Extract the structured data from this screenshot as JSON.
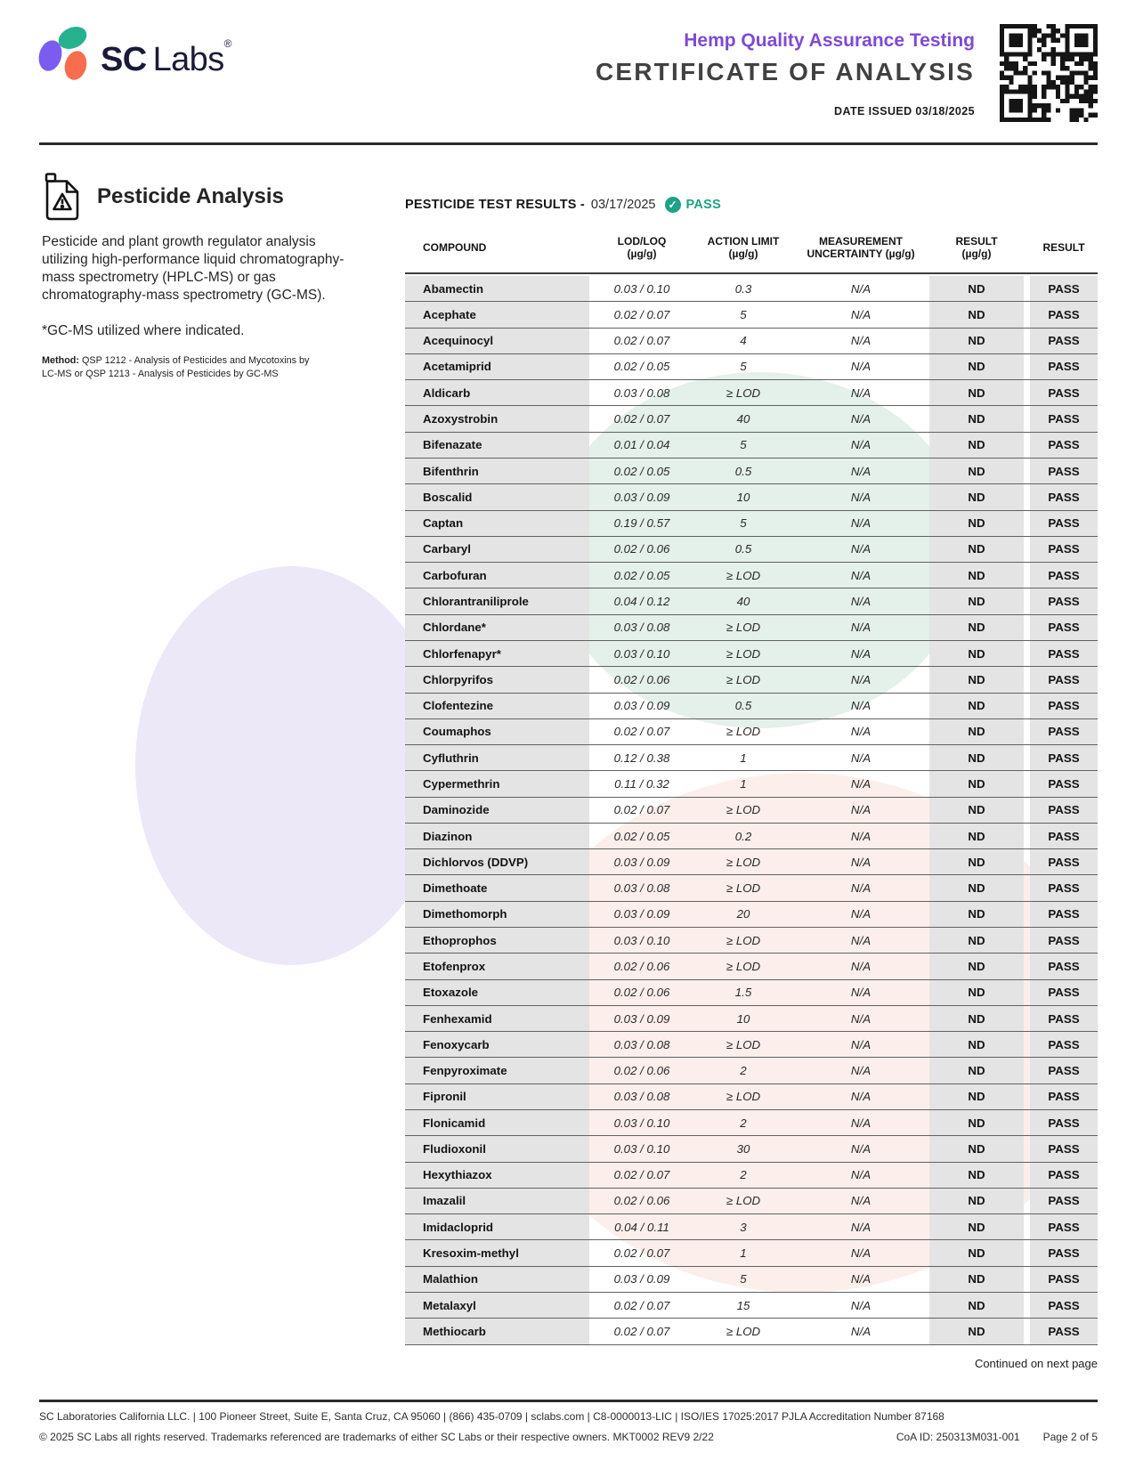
{
  "colors": {
    "purple": "#7e4ad2",
    "teal": "#1ea185",
    "navy": "#1b1b38",
    "logo-teal": "#27b28e",
    "logo-purple": "#7a5cf0",
    "logo-orange": "#f76d4e",
    "cell-gray": "#e4e4e4",
    "tint-teal": "#e4f0ea",
    "tint-lavender": "#ece8f8",
    "tint-pink": "#fcefeb"
  },
  "header": {
    "brand_sc": "SC",
    "brand_labs": "Labs",
    "brand_reg": "®",
    "program": "Hemp Quality Assurance Testing",
    "doc_title": "CERTIFICATE OF ANALYSIS",
    "date_issued": "DATE ISSUED 03/18/2025"
  },
  "section": {
    "title": "Pesticide Analysis",
    "description": "Pesticide and plant growth regulator analysis utilizing high-performance liquid chromatography-mass spectrometry (HPLC-MS) or gas chromatography-mass spectrometry (GC-MS).",
    "note": "*GC-MS utilized where indicated.",
    "method_label": "Method:",
    "method": " QSP 1212 - Analysis of Pesticides and Mycotoxins by LC-MS or QSP 1213 - Analysis of Pesticides by GC-MS"
  },
  "results": {
    "title": "PESTICIDE TEST RESULTS -",
    "date": "03/17/2025",
    "status": "PASS",
    "columns": [
      {
        "line1": "COMPOUND",
        "line2": ""
      },
      {
        "line1": "LOD/LOQ",
        "line2": "(µg/g)"
      },
      {
        "line1": "ACTION LIMIT",
        "line2": "(µg/g)"
      },
      {
        "line1": "MEASUREMENT",
        "line2": "UNCERTAINTY (µg/g)"
      },
      {
        "line1": "RESULT",
        "line2": "(µg/g)"
      },
      {
        "line1": "RESULT",
        "line2": ""
      }
    ],
    "rows": [
      {
        "compound": "Abamectin",
        "lod_loq": "0.03 / 0.10",
        "action_limit": "0.3",
        "uncertainty": "N/A",
        "result": "ND",
        "status": "PASS"
      },
      {
        "compound": "Acephate",
        "lod_loq": "0.02 / 0.07",
        "action_limit": "5",
        "uncertainty": "N/A",
        "result": "ND",
        "status": "PASS"
      },
      {
        "compound": "Acequinocyl",
        "lod_loq": "0.02 / 0.07",
        "action_limit": "4",
        "uncertainty": "N/A",
        "result": "ND",
        "status": "PASS"
      },
      {
        "compound": "Acetamiprid",
        "lod_loq": "0.02 / 0.05",
        "action_limit": "5",
        "uncertainty": "N/A",
        "result": "ND",
        "status": "PASS"
      },
      {
        "compound": "Aldicarb",
        "lod_loq": "0.03 / 0.08",
        "action_limit": "≥ LOD",
        "uncertainty": "N/A",
        "result": "ND",
        "status": "PASS"
      },
      {
        "compound": "Azoxystrobin",
        "lod_loq": "0.02 / 0.07",
        "action_limit": "40",
        "uncertainty": "N/A",
        "result": "ND",
        "status": "PASS"
      },
      {
        "compound": "Bifenazate",
        "lod_loq": "0.01 / 0.04",
        "action_limit": "5",
        "uncertainty": "N/A",
        "result": "ND",
        "status": "PASS"
      },
      {
        "compound": "Bifenthrin",
        "lod_loq": "0.02 / 0.05",
        "action_limit": "0.5",
        "uncertainty": "N/A",
        "result": "ND",
        "status": "PASS"
      },
      {
        "compound": "Boscalid",
        "lod_loq": "0.03 / 0.09",
        "action_limit": "10",
        "uncertainty": "N/A",
        "result": "ND",
        "status": "PASS"
      },
      {
        "compound": "Captan",
        "lod_loq": "0.19 / 0.57",
        "action_limit": "5",
        "uncertainty": "N/A",
        "result": "ND",
        "status": "PASS"
      },
      {
        "compound": "Carbaryl",
        "lod_loq": "0.02 / 0.06",
        "action_limit": "0.5",
        "uncertainty": "N/A",
        "result": "ND",
        "status": "PASS"
      },
      {
        "compound": "Carbofuran",
        "lod_loq": "0.02 / 0.05",
        "action_limit": "≥ LOD",
        "uncertainty": "N/A",
        "result": "ND",
        "status": "PASS"
      },
      {
        "compound": "Chlorantraniliprole",
        "lod_loq": "0.04 / 0.12",
        "action_limit": "40",
        "uncertainty": "N/A",
        "result": "ND",
        "status": "PASS"
      },
      {
        "compound": "Chlordane*",
        "lod_loq": "0.03 / 0.08",
        "action_limit": "≥ LOD",
        "uncertainty": "N/A",
        "result": "ND",
        "status": "PASS"
      },
      {
        "compound": "Chlorfenapyr*",
        "lod_loq": "0.03 / 0.10",
        "action_limit": "≥ LOD",
        "uncertainty": "N/A",
        "result": "ND",
        "status": "PASS"
      },
      {
        "compound": "Chlorpyrifos",
        "lod_loq": "0.02 / 0.06",
        "action_limit": "≥ LOD",
        "uncertainty": "N/A",
        "result": "ND",
        "status": "PASS"
      },
      {
        "compound": "Clofentezine",
        "lod_loq": "0.03 / 0.09",
        "action_limit": "0.5",
        "uncertainty": "N/A",
        "result": "ND",
        "status": "PASS"
      },
      {
        "compound": "Coumaphos",
        "lod_loq": "0.02 / 0.07",
        "action_limit": "≥ LOD",
        "uncertainty": "N/A",
        "result": "ND",
        "status": "PASS"
      },
      {
        "compound": "Cyfluthrin",
        "lod_loq": "0.12 / 0.38",
        "action_limit": "1",
        "uncertainty": "N/A",
        "result": "ND",
        "status": "PASS"
      },
      {
        "compound": "Cypermethrin",
        "lod_loq": "0.11 / 0.32",
        "action_limit": "1",
        "uncertainty": "N/A",
        "result": "ND",
        "status": "PASS"
      },
      {
        "compound": "Daminozide",
        "lod_loq": "0.02 / 0.07",
        "action_limit": "≥ LOD",
        "uncertainty": "N/A",
        "result": "ND",
        "status": "PASS"
      },
      {
        "compound": "Diazinon",
        "lod_loq": "0.02 / 0.05",
        "action_limit": "0.2",
        "uncertainty": "N/A",
        "result": "ND",
        "status": "PASS"
      },
      {
        "compound": "Dichlorvos (DDVP)",
        "lod_loq": "0.03 / 0.09",
        "action_limit": "≥ LOD",
        "uncertainty": "N/A",
        "result": "ND",
        "status": "PASS"
      },
      {
        "compound": "Dimethoate",
        "lod_loq": "0.03 / 0.08",
        "action_limit": "≥ LOD",
        "uncertainty": "N/A",
        "result": "ND",
        "status": "PASS"
      },
      {
        "compound": "Dimethomorph",
        "lod_loq": "0.03 / 0.09",
        "action_limit": "20",
        "uncertainty": "N/A",
        "result": "ND",
        "status": "PASS"
      },
      {
        "compound": "Ethoprophos",
        "lod_loq": "0.03 / 0.10",
        "action_limit": "≥ LOD",
        "uncertainty": "N/A",
        "result": "ND",
        "status": "PASS"
      },
      {
        "compound": "Etofenprox",
        "lod_loq": "0.02 / 0.06",
        "action_limit": "≥ LOD",
        "uncertainty": "N/A",
        "result": "ND",
        "status": "PASS"
      },
      {
        "compound": "Etoxazole",
        "lod_loq": "0.02 / 0.06",
        "action_limit": "1.5",
        "uncertainty": "N/A",
        "result": "ND",
        "status": "PASS"
      },
      {
        "compound": "Fenhexamid",
        "lod_loq": "0.03 / 0.09",
        "action_limit": "10",
        "uncertainty": "N/A",
        "result": "ND",
        "status": "PASS"
      },
      {
        "compound": "Fenoxycarb",
        "lod_loq": "0.03 / 0.08",
        "action_limit": "≥ LOD",
        "uncertainty": "N/A",
        "result": "ND",
        "status": "PASS"
      },
      {
        "compound": "Fenpyroximate",
        "lod_loq": "0.02 / 0.06",
        "action_limit": "2",
        "uncertainty": "N/A",
        "result": "ND",
        "status": "PASS"
      },
      {
        "compound": "Fipronil",
        "lod_loq": "0.03 / 0.08",
        "action_limit": "≥ LOD",
        "uncertainty": "N/A",
        "result": "ND",
        "status": "PASS"
      },
      {
        "compound": "Flonicamid",
        "lod_loq": "0.03 / 0.10",
        "action_limit": "2",
        "uncertainty": "N/A",
        "result": "ND",
        "status": "PASS"
      },
      {
        "compound": "Fludioxonil",
        "lod_loq": "0.03 / 0.10",
        "action_limit": "30",
        "uncertainty": "N/A",
        "result": "ND",
        "status": "PASS"
      },
      {
        "compound": "Hexythiazox",
        "lod_loq": "0.02 / 0.07",
        "action_limit": "2",
        "uncertainty": "N/A",
        "result": "ND",
        "status": "PASS"
      },
      {
        "compound": "Imazalil",
        "lod_loq": "0.02 / 0.06",
        "action_limit": "≥ LOD",
        "uncertainty": "N/A",
        "result": "ND",
        "status": "PASS"
      },
      {
        "compound": "Imidacloprid",
        "lod_loq": "0.04 / 0.11",
        "action_limit": "3",
        "uncertainty": "N/A",
        "result": "ND",
        "status": "PASS"
      },
      {
        "compound": "Kresoxim-methyl",
        "lod_loq": "0.02 / 0.07",
        "action_limit": "1",
        "uncertainty": "N/A",
        "result": "ND",
        "status": "PASS"
      },
      {
        "compound": "Malathion",
        "lod_loq": "0.03 / 0.09",
        "action_limit": "5",
        "uncertainty": "N/A",
        "result": "ND",
        "status": "PASS"
      },
      {
        "compound": "Metalaxyl",
        "lod_loq": "0.02 / 0.07",
        "action_limit": "15",
        "uncertainty": "N/A",
        "result": "ND",
        "status": "PASS"
      },
      {
        "compound": "Methiocarb",
        "lod_loq": "0.02 / 0.07",
        "action_limit": "≥ LOD",
        "uncertainty": "N/A",
        "result": "ND",
        "status": "PASS"
      }
    ],
    "continued": "Continued on next page"
  },
  "footer": {
    "line1": "SC Laboratories California LLC. | 100 Pioneer Street, Suite E, Santa Cruz, CA 95060 | (866) 435-0709 | sclabs.com | C8-0000013-LIC | ISO/IES 17025:2017 PJLA Accreditation Number 87168",
    "line2": "© 2025 SC Labs all rights reserved. Trademarks referenced are trademarks of either SC Labs or their respective owners. MKT0002 REV9 2/22",
    "coa_id": "CoA ID: 250313M031-001",
    "page": "Page 2 of 5"
  }
}
